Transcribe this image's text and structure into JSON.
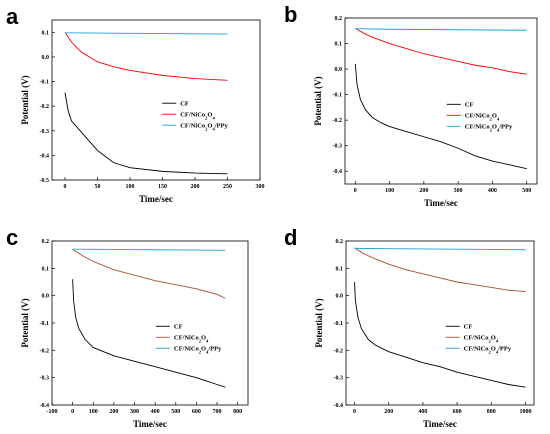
{
  "chart_data": [
    {
      "panel_label": "a",
      "type": "line",
      "xlabel": "Time/sec",
      "ylabel": "Potential (V)",
      "xlim": [
        -20,
        300
      ],
      "ylim": [
        -0.5,
        0.15
      ],
      "xticks": [
        0,
        50,
        100,
        150,
        200,
        250,
        300
      ],
      "yticks": [
        -0.5,
        -0.4,
        -0.3,
        -0.2,
        -0.1,
        0.0,
        0.1
      ],
      "xtick_labels": [
        "0",
        "50",
        "100",
        "150",
        "200",
        "250",
        "300"
      ],
      "ytick_labels": [
        "-0.5",
        "-0.4",
        "-0.3",
        "-0.2",
        "-0.1",
        "0.0",
        "0.1"
      ],
      "legend": {
        "placement": "right",
        "entries": [
          "CF",
          "CF/NiCo2O4",
          "CF/NiCo2O4/PPy"
        ]
      },
      "series": [
        {
          "name": "CF",
          "color": "#000000",
          "x": [
            0,
            5,
            10,
            20,
            30,
            40,
            50,
            60,
            75,
            100,
            150,
            200,
            250
          ],
          "y": [
            -0.145,
            -0.22,
            -0.26,
            -0.29,
            -0.32,
            -0.35,
            -0.38,
            -0.4,
            -0.43,
            -0.45,
            -0.465,
            -0.472,
            -0.475
          ]
        },
        {
          "name": "CF/NiCo2O4",
          "color": "#ff0000",
          "x": [
            0,
            10,
            25,
            50,
            75,
            100,
            150,
            200,
            250
          ],
          "y": [
            0.1,
            0.06,
            0.02,
            -0.02,
            -0.04,
            -0.055,
            -0.075,
            -0.088,
            -0.095
          ]
        },
        {
          "name": "CF/NiCo2O4/PPy",
          "color": "#1fa0d8",
          "x": [
            0,
            50,
            100,
            150,
            200,
            250
          ],
          "y": [
            0.098,
            0.097,
            0.096,
            0.095,
            0.094,
            0.093
          ]
        }
      ]
    },
    {
      "panel_label": "b",
      "type": "line",
      "xlabel": "Time/sec",
      "ylabel": "Potential (V)",
      "xlim": [
        -30,
        530
      ],
      "ylim": [
        -0.45,
        0.2
      ],
      "xticks": [
        0,
        100,
        200,
        300,
        400,
        500
      ],
      "yticks": [
        -0.4,
        -0.3,
        -0.2,
        -0.1,
        0.0,
        0.1,
        0.2
      ],
      "xtick_labels": [
        "0",
        "100",
        "200",
        "300",
        "400",
        "500"
      ],
      "ytick_labels": [
        "-0.4",
        "-0.3",
        "-0.2",
        "-0.1",
        "0.0",
        "0.1",
        "0.2"
      ],
      "legend": {
        "placement": "right",
        "entries": [
          "CF",
          "CF/NiCo2O4",
          "CF/NiCo2O4/PPy"
        ]
      },
      "series": [
        {
          "name": "CF",
          "color": "#000000",
          "x": [
            0,
            5,
            15,
            30,
            50,
            75,
            100,
            150,
            200,
            250,
            300,
            350,
            400,
            450,
            500
          ],
          "y": [
            0.02,
            -0.06,
            -0.12,
            -0.16,
            -0.19,
            -0.21,
            -0.225,
            -0.245,
            -0.265,
            -0.285,
            -0.31,
            -0.34,
            -0.36,
            -0.375,
            -0.39
          ]
        },
        {
          "name": "CF/NiCo2O4",
          "color": "#ff0000",
          "x": [
            0,
            25,
            50,
            100,
            150,
            200,
            250,
            300,
            350,
            400,
            450,
            500
          ],
          "y": [
            0.16,
            0.14,
            0.125,
            0.1,
            0.08,
            0.06,
            0.045,
            0.03,
            0.015,
            0.005,
            -0.01,
            -0.02
          ]
        },
        {
          "name": "CF/NiCo2O4/PPy",
          "color": "#1fa0d8",
          "x": [
            0,
            100,
            200,
            300,
            400,
            500
          ],
          "y": [
            0.158,
            0.156,
            0.155,
            0.154,
            0.153,
            0.152
          ]
        }
      ]
    },
    {
      "panel_label": "c",
      "type": "line",
      "xlabel": "Time/sec",
      "ylabel": "Potential (V)",
      "xlim": [
        -100,
        850
      ],
      "ylim": [
        -0.4,
        0.2
      ],
      "xticks": [
        -100,
        0,
        100,
        200,
        300,
        400,
        500,
        600,
        700,
        800
      ],
      "yticks": [
        -0.4,
        -0.3,
        -0.2,
        -0.1,
        0.0,
        0.1,
        0.2
      ],
      "xtick_labels": [
        "-100",
        "0",
        "100",
        "200",
        "300",
        "400",
        "500",
        "600",
        "700",
        "800"
      ],
      "ytick_labels": [
        "-0.4",
        "-0.3",
        "-0.2",
        "-0.1",
        "0.0",
        "0.1",
        "0.2"
      ],
      "legend": {
        "placement": "right",
        "entries": [
          "CF",
          "CF/NiCo2O4",
          "CF/NiCo2O4/PPy"
        ]
      },
      "series": [
        {
          "name": "CF",
          "color": "#000000",
          "x": [
            0,
            5,
            15,
            30,
            60,
            100,
            150,
            200,
            300,
            400,
            500,
            600,
            700,
            740
          ],
          "y": [
            0.06,
            -0.02,
            -0.08,
            -0.12,
            -0.16,
            -0.19,
            -0.205,
            -0.22,
            -0.24,
            -0.26,
            -0.28,
            -0.3,
            -0.325,
            -0.335
          ]
        },
        {
          "name": "CF/NiCo2O4",
          "color": "#a0522d",
          "x": [
            0,
            50,
            100,
            200,
            300,
            400,
            500,
            600,
            700,
            740
          ],
          "y": [
            0.17,
            0.145,
            0.125,
            0.095,
            0.075,
            0.055,
            0.04,
            0.025,
            0.005,
            -0.01
          ]
        },
        {
          "name": "CF/NiCo2O4/PPy",
          "color": "#1fa0d8",
          "x": [
            0,
            200,
            400,
            600,
            740
          ],
          "y": [
            0.17,
            0.169,
            0.168,
            0.167,
            0.166
          ]
        }
      ]
    },
    {
      "panel_label": "d",
      "type": "line",
      "xlabel": "Time/sec",
      "ylabel": "Potential (V)",
      "xlim": [
        -50,
        1050
      ],
      "ylim": [
        -0.4,
        0.2
      ],
      "xticks": [
        0,
        200,
        400,
        600,
        800,
        1000
      ],
      "yticks": [
        -0.4,
        -0.3,
        -0.2,
        -0.1,
        0.0,
        0.1,
        0.2
      ],
      "xtick_labels": [
        "0",
        "200",
        "400",
        "600",
        "800",
        "1000"
      ],
      "ytick_labels": [
        "-0.4",
        "-0.3",
        "-0.2",
        "-0.1",
        "0.0",
        "0.1",
        "0.2"
      ],
      "legend": {
        "placement": "right",
        "entries": [
          "CF",
          "CF/NiCo2O4",
          "CF/NiCo2O4/PPy"
        ]
      },
      "series": [
        {
          "name": "CF",
          "color": "#000000",
          "x": [
            0,
            5,
            20,
            40,
            80,
            120,
            200,
            300,
            400,
            500,
            600,
            700,
            800,
            900,
            1000
          ],
          "y": [
            0.05,
            -0.02,
            -0.08,
            -0.12,
            -0.16,
            -0.18,
            -0.205,
            -0.225,
            -0.245,
            -0.26,
            -0.28,
            -0.295,
            -0.31,
            -0.325,
            -0.335
          ]
        },
        {
          "name": "CF/NiCo2O4",
          "color": "#a0522d",
          "x": [
            0,
            50,
            100,
            200,
            300,
            400,
            500,
            600,
            700,
            800,
            900,
            1000
          ],
          "y": [
            0.175,
            0.155,
            0.14,
            0.115,
            0.095,
            0.08,
            0.065,
            0.05,
            0.04,
            0.03,
            0.02,
            0.015
          ]
        },
        {
          "name": "CF/NiCo2O4/PPy",
          "color": "#1fa0d8",
          "x": [
            0,
            200,
            400,
            600,
            800,
            1000
          ],
          "y": [
            0.173,
            0.172,
            0.171,
            0.17,
            0.169,
            0.168
          ]
        }
      ]
    }
  ]
}
